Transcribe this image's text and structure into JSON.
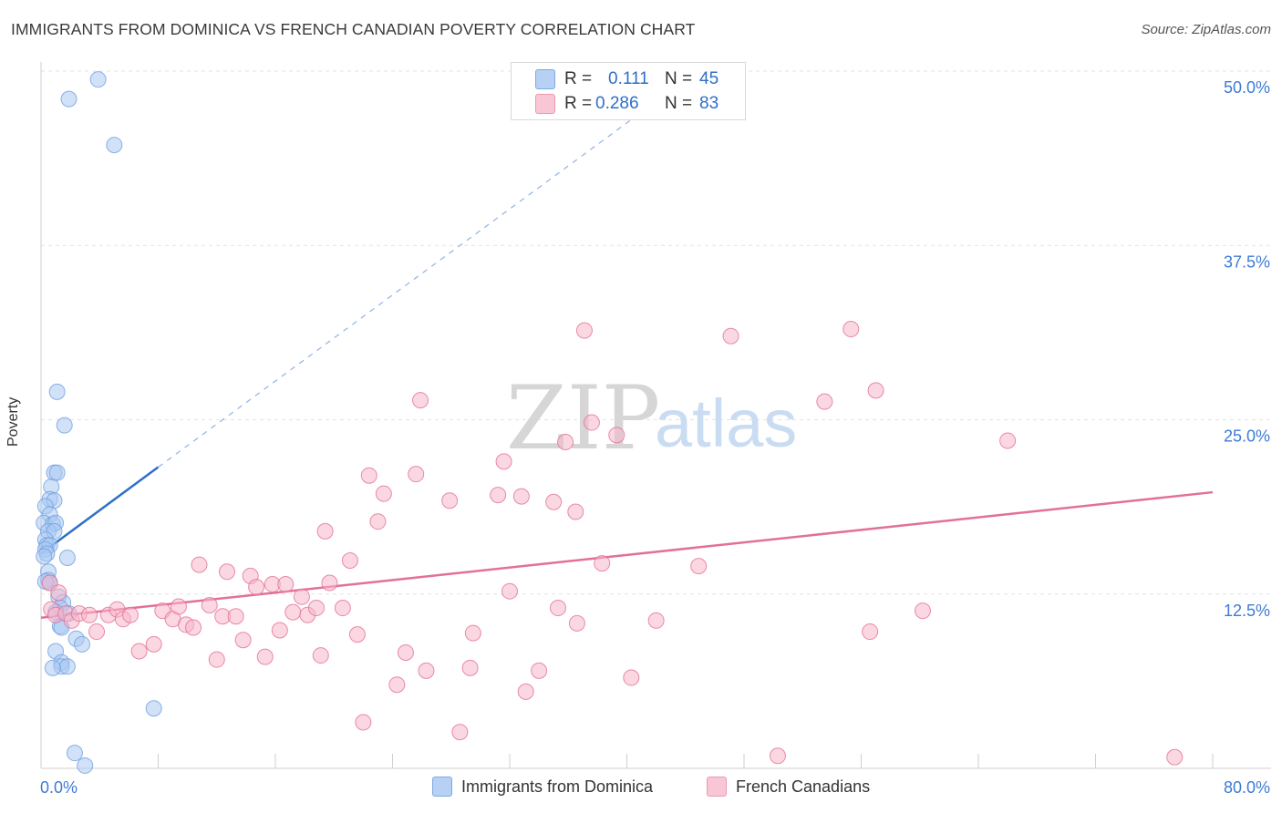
{
  "title": "IMMIGRANTS FROM DOMINICA VS FRENCH CANADIAN POVERTY CORRELATION CHART",
  "source": "Source: ZipAtlas.com",
  "watermark": {
    "zip": "ZIP",
    "atlas": "atlas"
  },
  "legend": {
    "rows": [
      {
        "r_label": "R =",
        "r_value": "0.111",
        "n_label": "N =",
        "n_value": "45",
        "color": "#a9c8f2"
      },
      {
        "r_label": "R =",
        "r_value": "0.286",
        "n_label": "N =",
        "n_value": "83",
        "color": "#f7b7c9"
      }
    ]
  },
  "bottom_legend": [
    {
      "label": "Immigrants from Dominica",
      "color": "#a9c8f2"
    },
    {
      "label": "French Canadians",
      "color": "#f7b7c9"
    }
  ],
  "chart_data": {
    "type": "scatter",
    "title": "IMMIGRANTS FROM DOMINICA VS FRENCH CANADIAN POVERTY CORRELATION CHART",
    "xlabel": "",
    "ylabel": "Poverty",
    "xlim": [
      0,
      80
    ],
    "ylim": [
      0,
      50
    ],
    "x_tick_labels": [
      {
        "value": 0,
        "label": "0.0%"
      },
      {
        "value": 80,
        "label": "80.0%"
      }
    ],
    "y_tick_labels": [
      {
        "value": 12.5,
        "label": "12.5%"
      },
      {
        "value": 25.0,
        "label": "25.0%"
      },
      {
        "value": 37.5,
        "label": "37.5%"
      },
      {
        "value": 50.0,
        "label": "50.0%"
      }
    ],
    "grid": true,
    "legend_position": "top-center",
    "series": [
      {
        "name": "Immigrants from Dominica",
        "color": "#6fa0e0",
        "fill": "#a9c8f2",
        "trend": {
          "x": [
            0,
            8
          ],
          "y": [
            15.4,
            21.6
          ],
          "extended_to": [
            43,
            48.6
          ]
        },
        "points": [
          [
            3.9,
            49.4
          ],
          [
            1.9,
            48.0
          ],
          [
            5.0,
            44.7
          ],
          [
            1.1,
            27.0
          ],
          [
            1.6,
            24.6
          ],
          [
            0.9,
            21.2
          ],
          [
            1.1,
            21.2
          ],
          [
            0.7,
            20.2
          ],
          [
            0.6,
            19.3
          ],
          [
            0.9,
            19.2
          ],
          [
            0.3,
            18.8
          ],
          [
            0.6,
            18.2
          ],
          [
            0.2,
            17.6
          ],
          [
            0.8,
            17.5
          ],
          [
            1.0,
            17.6
          ],
          [
            0.5,
            17.0
          ],
          [
            0.9,
            17.0
          ],
          [
            0.3,
            16.4
          ],
          [
            0.4,
            16.0
          ],
          [
            0.6,
            16.0
          ],
          [
            0.3,
            15.7
          ],
          [
            0.4,
            15.4
          ],
          [
            0.2,
            15.2
          ],
          [
            1.8,
            15.1
          ],
          [
            0.5,
            14.1
          ],
          [
            0.5,
            13.5
          ],
          [
            0.6,
            13.3
          ],
          [
            0.3,
            13.4
          ],
          [
            1.2,
            12.3
          ],
          [
            1.5,
            11.9
          ],
          [
            1.3,
            11.5
          ],
          [
            1.9,
            11.1
          ],
          [
            1.0,
            11.2
          ],
          [
            1.3,
            10.2
          ],
          [
            1.4,
            10.1
          ],
          [
            2.4,
            9.3
          ],
          [
            2.8,
            8.9
          ],
          [
            1.0,
            8.4
          ],
          [
            1.4,
            7.6
          ],
          [
            1.4,
            7.3
          ],
          [
            1.8,
            7.3
          ],
          [
            0.8,
            7.2
          ],
          [
            7.7,
            4.3
          ],
          [
            2.3,
            1.1
          ],
          [
            3.0,
            0.2
          ]
        ]
      },
      {
        "name": "French Canadians",
        "color": "#e2709a",
        "fill": "#f7b7c9",
        "trend": {
          "x": [
            0,
            80
          ],
          "y": [
            10.8,
            19.8
          ]
        },
        "points": [
          [
            0.6,
            13.3
          ],
          [
            0.7,
            11.4
          ],
          [
            1.2,
            12.6
          ],
          [
            1.0,
            11.0
          ],
          [
            1.7,
            11.1
          ],
          [
            2.1,
            10.6
          ],
          [
            2.6,
            11.1
          ],
          [
            3.3,
            11.0
          ],
          [
            3.8,
            9.8
          ],
          [
            4.6,
            11.0
          ],
          [
            5.2,
            11.4
          ],
          [
            5.6,
            10.7
          ],
          [
            6.1,
            11.0
          ],
          [
            6.7,
            8.4
          ],
          [
            7.7,
            8.9
          ],
          [
            8.3,
            11.3
          ],
          [
            9.0,
            10.7
          ],
          [
            9.4,
            11.6
          ],
          [
            9.9,
            10.3
          ],
          [
            10.4,
            10.1
          ],
          [
            10.8,
            14.6
          ],
          [
            11.5,
            11.7
          ],
          [
            12.0,
            7.8
          ],
          [
            12.4,
            10.9
          ],
          [
            12.7,
            14.1
          ],
          [
            13.3,
            10.9
          ],
          [
            13.8,
            9.2
          ],
          [
            14.3,
            13.8
          ],
          [
            14.7,
            13.0
          ],
          [
            15.3,
            8.0
          ],
          [
            15.8,
            13.2
          ],
          [
            16.3,
            9.9
          ],
          [
            16.7,
            13.2
          ],
          [
            17.2,
            11.2
          ],
          [
            17.8,
            12.3
          ],
          [
            18.2,
            11.0
          ],
          [
            18.8,
            11.5
          ],
          [
            19.1,
            8.1
          ],
          [
            19.7,
            13.3
          ],
          [
            19.4,
            17.0
          ],
          [
            20.6,
            11.5
          ],
          [
            21.1,
            14.9
          ],
          [
            21.6,
            9.6
          ],
          [
            22.0,
            3.3
          ],
          [
            22.4,
            21.0
          ],
          [
            23.0,
            17.7
          ],
          [
            23.4,
            19.7
          ],
          [
            24.3,
            6.0
          ],
          [
            24.9,
            8.3
          ],
          [
            25.6,
            21.1
          ],
          [
            25.9,
            26.4
          ],
          [
            26.3,
            7.0
          ],
          [
            27.9,
            19.2
          ],
          [
            28.6,
            2.6
          ],
          [
            29.3,
            7.2
          ],
          [
            29.5,
            9.7
          ],
          [
            31.2,
            19.6
          ],
          [
            31.6,
            22.0
          ],
          [
            32.0,
            12.7
          ],
          [
            32.8,
            19.5
          ],
          [
            33.1,
            5.5
          ],
          [
            34.0,
            7.0
          ],
          [
            35.0,
            19.1
          ],
          [
            35.3,
            11.5
          ],
          [
            35.8,
            23.4
          ],
          [
            36.5,
            18.4
          ],
          [
            36.6,
            10.4
          ],
          [
            37.1,
            31.4
          ],
          [
            37.6,
            24.8
          ],
          [
            38.3,
            14.7
          ],
          [
            39.3,
            23.9
          ],
          [
            40.3,
            6.5
          ],
          [
            42.0,
            10.6
          ],
          [
            44.9,
            14.5
          ],
          [
            47.1,
            31.0
          ],
          [
            50.3,
            0.9
          ],
          [
            53.5,
            26.3
          ],
          [
            55.3,
            31.5
          ],
          [
            56.6,
            9.8
          ],
          [
            57.0,
            27.1
          ],
          [
            60.2,
            11.3
          ],
          [
            77.4,
            0.8
          ],
          [
            66.0,
            23.5
          ]
        ]
      }
    ]
  }
}
